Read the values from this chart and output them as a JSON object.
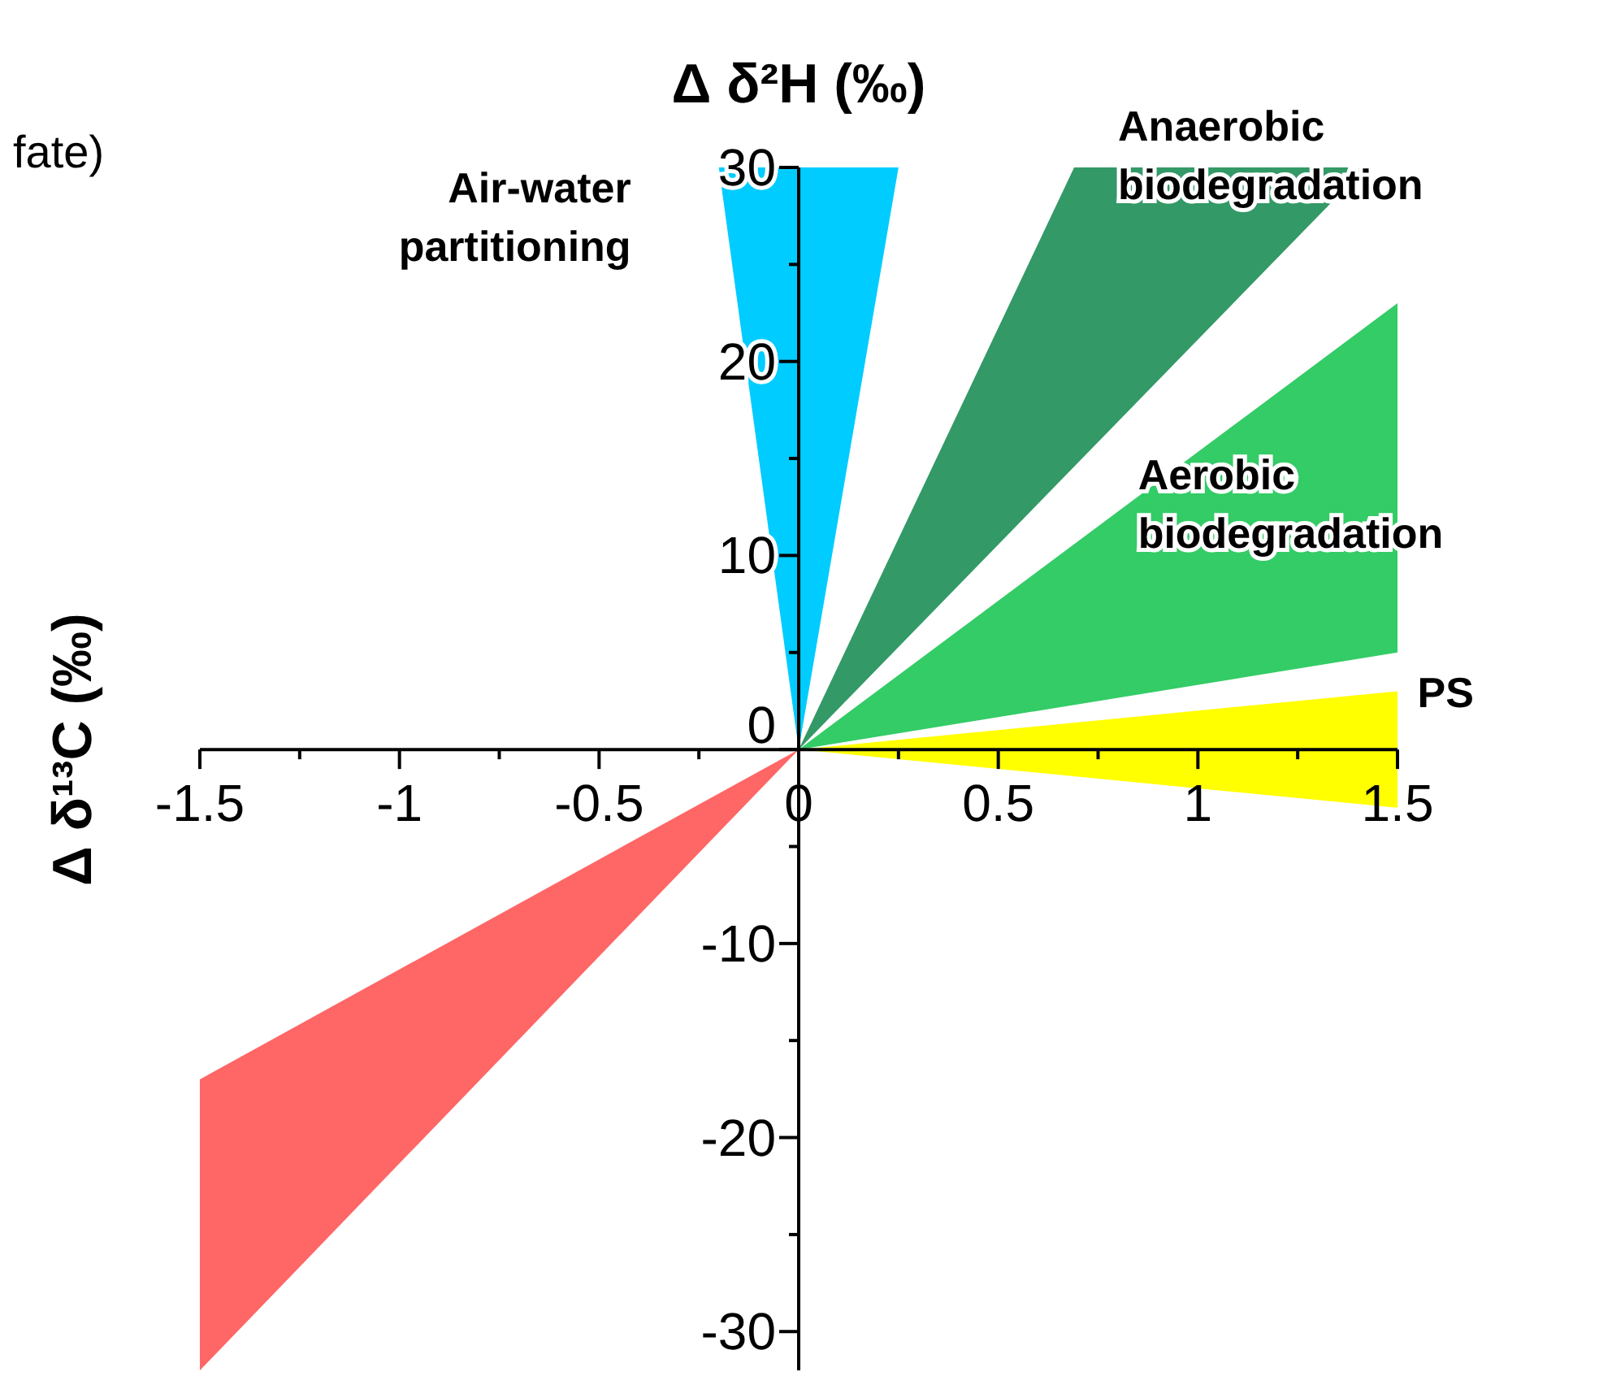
{
  "chart_data": {
    "type": "area",
    "xlabel": "Δ δ²H (‰)",
    "ylabel": "Δ δ¹³C (‰)",
    "annotations": [
      "fate)"
    ],
    "xlim": [
      -1.5,
      1.5
    ],
    "ylim": [
      -32,
      30
    ],
    "xticks": [
      -1.5,
      {
        "value": -1.25,
        "label": null
      },
      -1,
      {
        "value": -0.75,
        "label": null
      },
      -0.5,
      {
        "value": -0.25,
        "label": null
      },
      0,
      {
        "value": 0.25,
        "label": null
      },
      0.5,
      {
        "value": 0.75,
        "label": null
      },
      1,
      {
        "value": 1.25,
        "label": null
      },
      1.5
    ],
    "yticks": [
      -30,
      {
        "value": -25,
        "label": null
      },
      -20,
      {
        "value": -15,
        "label": null
      },
      -10,
      {
        "value": -5,
        "label": null
      },
      0,
      {
        "value": 5,
        "label": null
      },
      10,
      {
        "value": 15,
        "label": null
      },
      20,
      {
        "value": 25,
        "label": null
      },
      30
    ],
    "grid": false,
    "legend": false,
    "series": [
      {
        "name": "Air-water partitioning",
        "color": "#00ccff",
        "x": [
          0,
          -0.2,
          0.25
        ],
        "values": [
          0,
          30,
          30
        ]
      },
      {
        "name": "Anaerobic biodegradation",
        "color": "#339966",
        "x": [
          0,
          0.69,
          1.42
        ],
        "values": [
          0,
          30,
          30
        ]
      },
      {
        "name": "Aerobic biodegradation",
        "color": "#33cc66",
        "x": [
          0,
          1.5,
          1.5
        ],
        "values": [
          0,
          23,
          5
        ]
      },
      {
        "name": "PS",
        "color": "#ffff00",
        "x": [
          0,
          1.5,
          1.5
        ],
        "values": [
          0,
          3,
          -3
        ]
      },
      {
        "color": "#ff6666",
        "x": [
          0,
          -1.5,
          -1.5
        ],
        "values": [
          0,
          -17,
          -32
        ]
      }
    ]
  }
}
